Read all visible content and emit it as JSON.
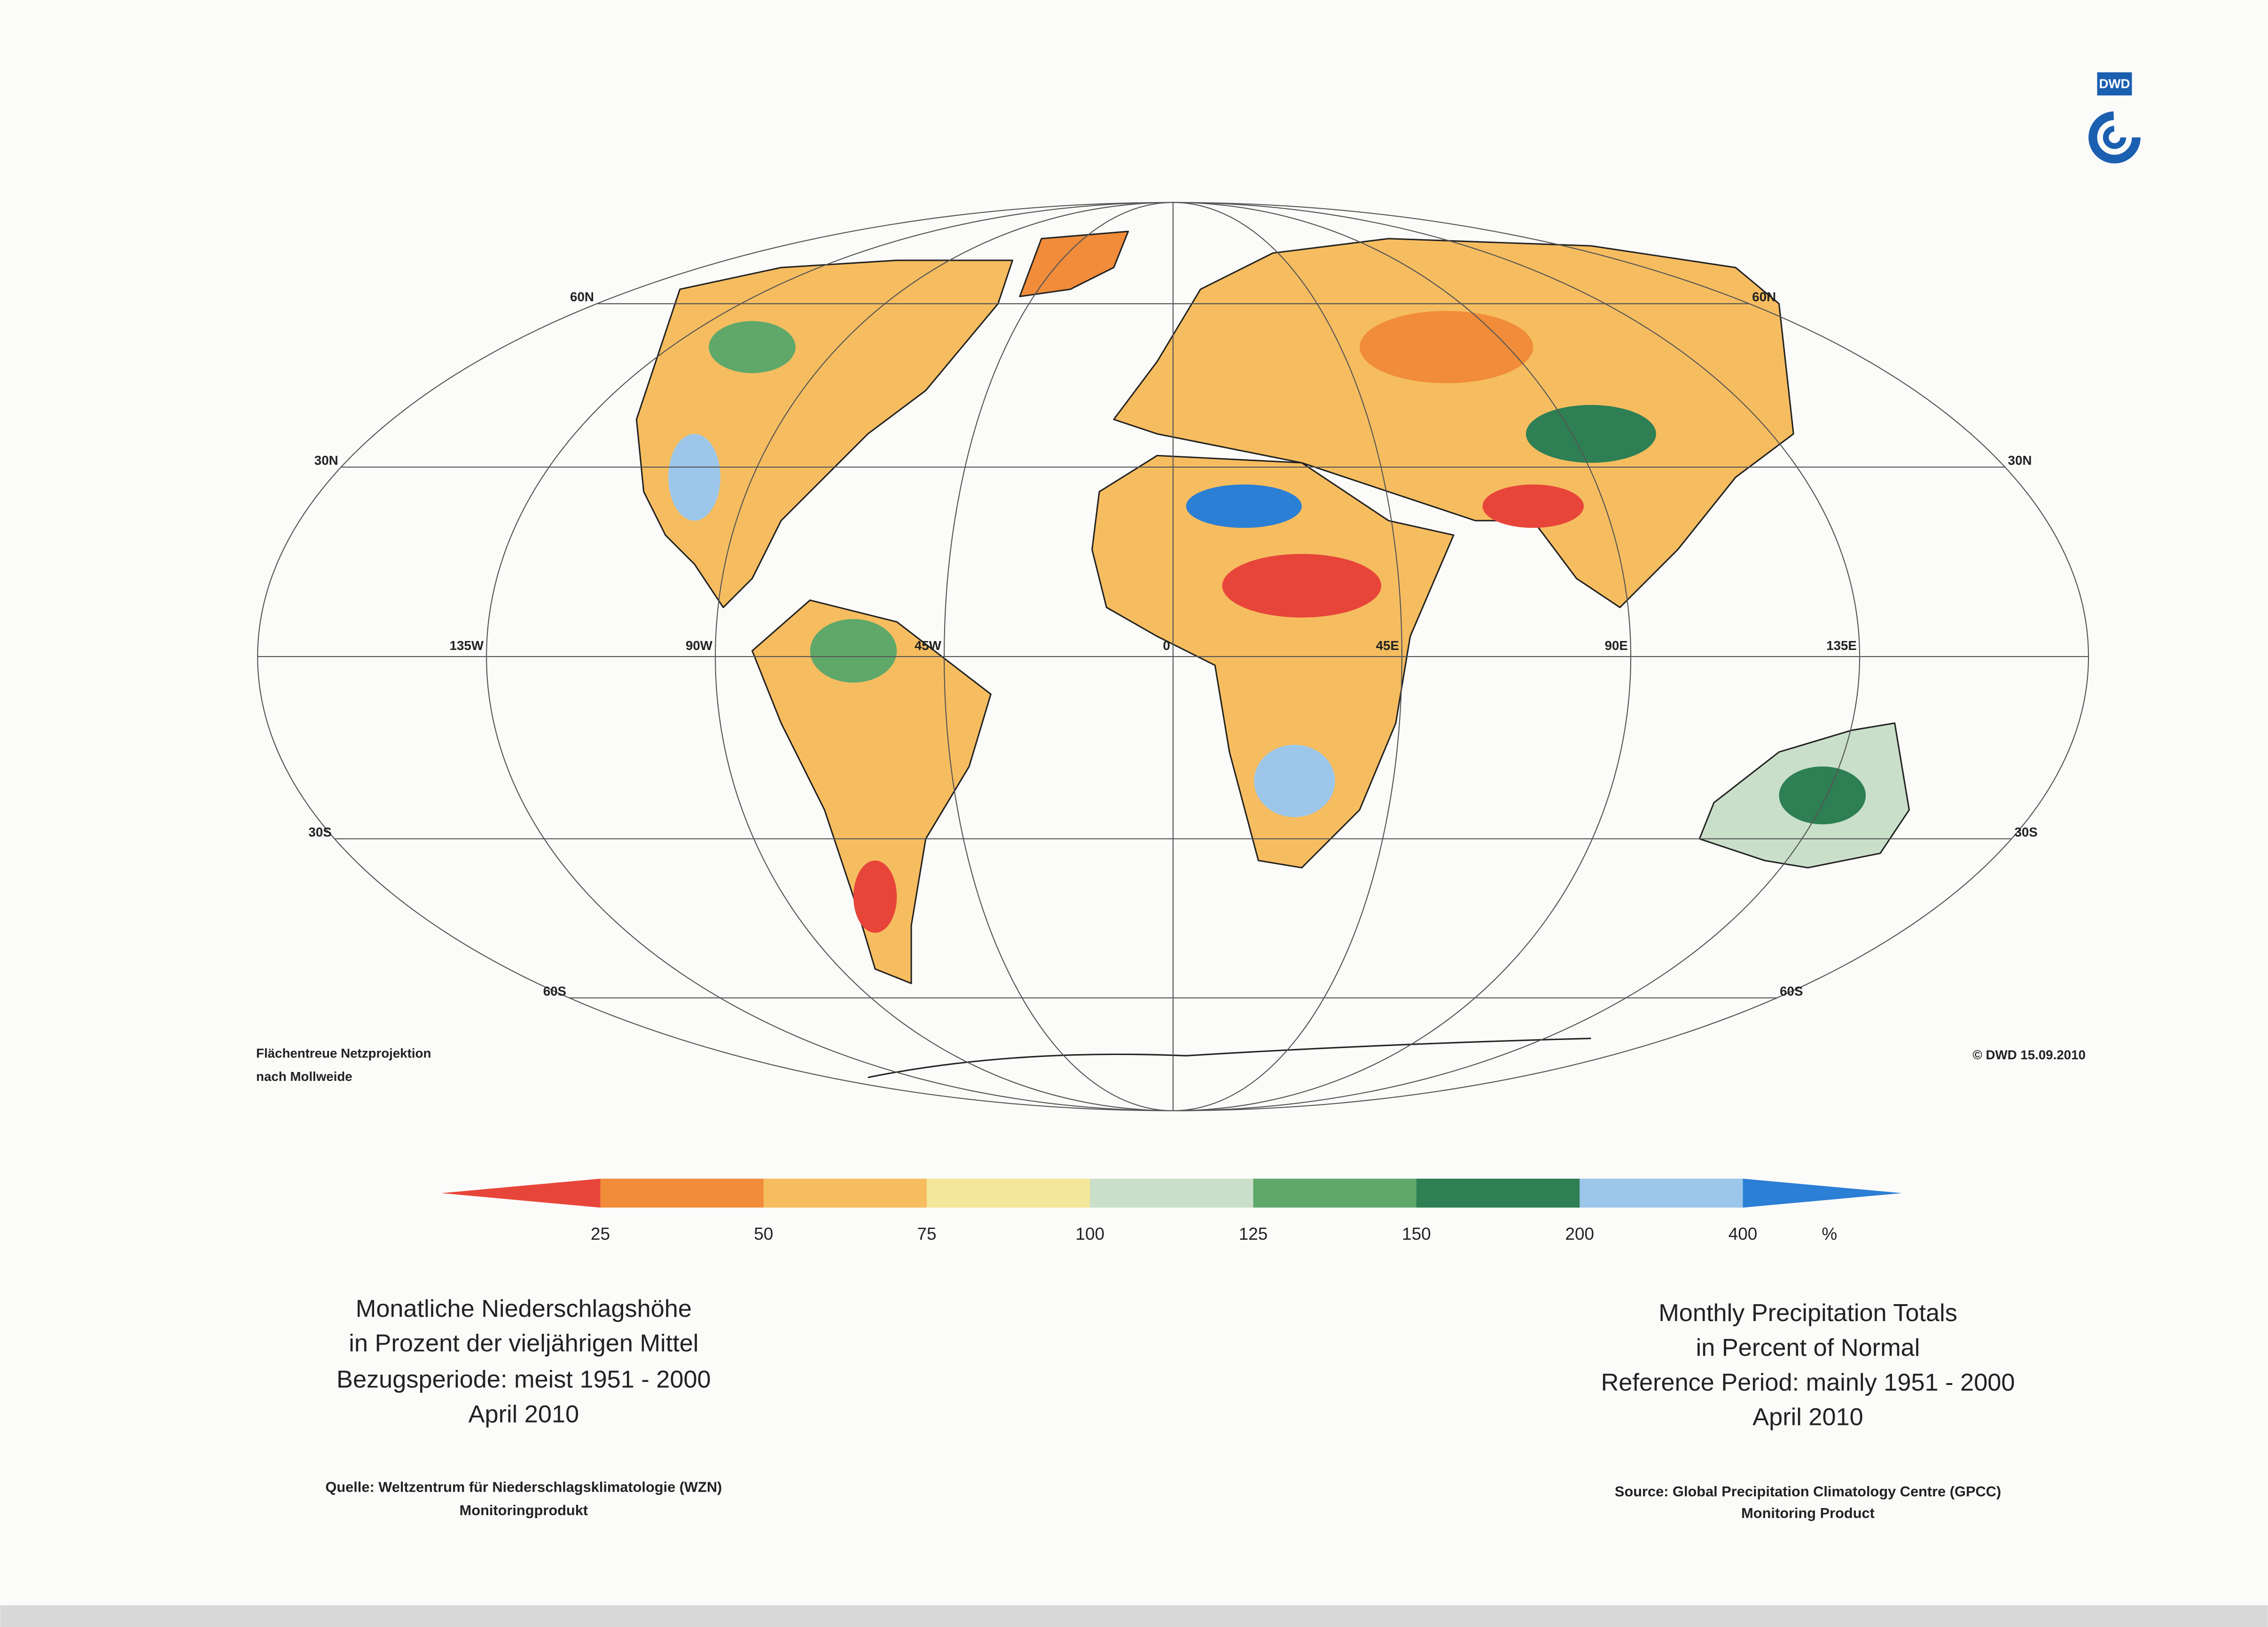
{
  "logo": "DWD",
  "map": {
    "parallels": [
      "60N",
      "30N",
      "30S",
      "60S"
    ],
    "meridians": [
      "135W",
      "90W",
      "45W",
      "0",
      "45E",
      "90E",
      "135E"
    ]
  },
  "projection_note": [
    "Flächentreue Netzprojektion",
    "nach Mollweide"
  ],
  "copyright": "© DWD 15.09.2010",
  "legend": {
    "ticks": [
      25,
      50,
      75,
      100,
      125,
      150,
      200,
      400
    ],
    "unit": "%",
    "colors": [
      "#e8453a",
      "#f08c3a",
      "#f6bd60",
      "#f3e79a",
      "#cadfc9",
      "#5fa86a",
      "#2e7f54",
      "#9cc7ea",
      "#2b7fd4"
    ]
  },
  "german": {
    "title": [
      "Monatliche Niederschlagshöhe",
      "in Prozent der vieljährigen Mittel",
      "Bezugsperiode: meist 1951 - 2000",
      "April 2010"
    ],
    "source": [
      "Quelle: Weltzentrum für Niederschlagsklimatologie (WZN)",
      "Monitoringprodukt"
    ]
  },
  "english": {
    "title": [
      "Monthly Precipitation Totals",
      "in Percent of Normal",
      "Reference Period: mainly 1951 - 2000",
      "April 2010"
    ],
    "source": [
      "Source: Global Precipitation Climatology Centre (GPCC)",
      "Monitoring Product"
    ]
  }
}
